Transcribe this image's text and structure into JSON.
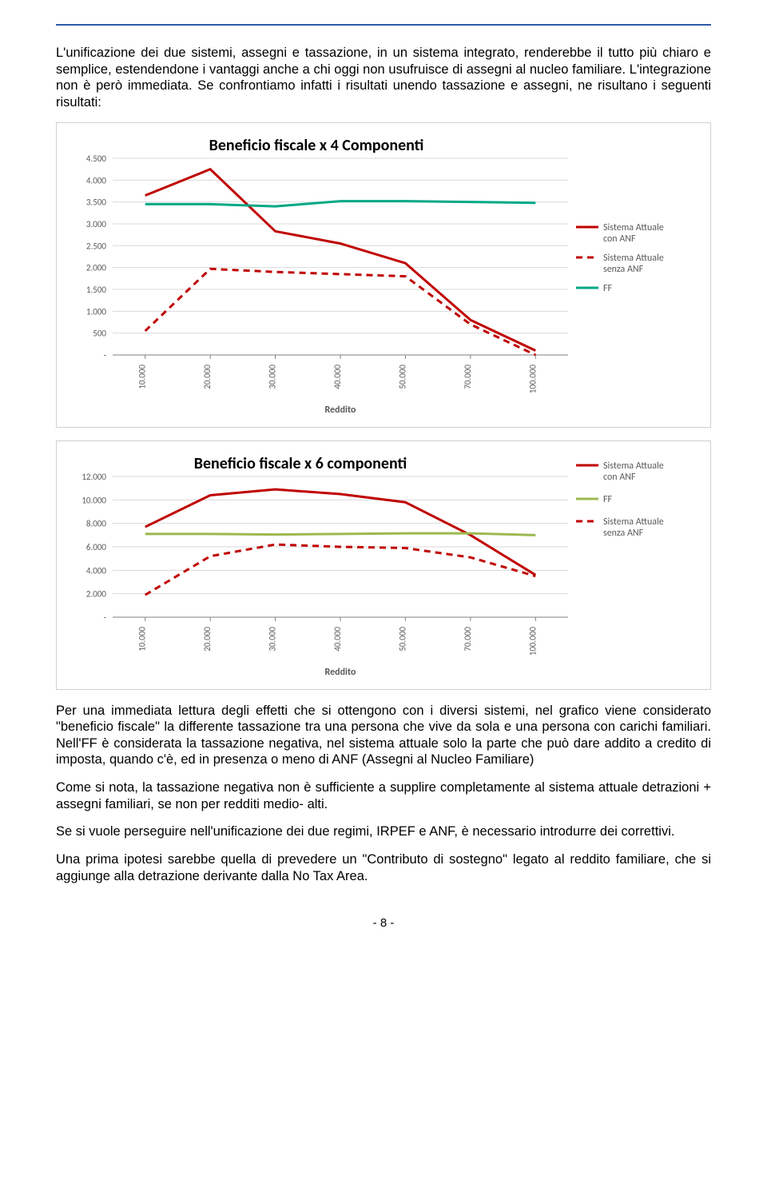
{
  "para1": "L'unificazione dei due sistemi, assegni e tassazione, in un sistema integrato, renderebbe il tutto più chiaro e semplice, estendendone i vantaggi anche a chi oggi non usufruisce di assegni al nucleo familiare. L'integrazione non è però immediata. Se confrontiamo infatti i risultati unendo tassazione e assegni, ne risultano i seguenti risultati:",
  "para2": "Per una immediata lettura degli effetti che si ottengono con i diversi sistemi, nel grafico viene considerato \"beneficio fiscale\" la differente tassazione tra una persona che vive da sola e una persona con carichi familiari. Nell'FF è considerata la tassazione negativa, nel sistema attuale solo la parte che può dare addito a credito di imposta, quando c'è, ed in presenza o meno di ANF (Assegni al Nucleo Familiare)",
  "para3": "Come si nota, la tassazione negativa non è sufficiente a supplire completamente al sistema attuale detrazioni + assegni familiari, se non per redditi medio- alti.",
  "para4": "Se si vuole perseguire nell'unificazione dei due regimi, IRPEF e ANF, è necessario introdurre dei correttivi.",
  "para5": "Una prima ipotesi sarebbe quella di prevedere un \"Contributo di sostegno\" legato al reddito familiare, che si aggiunge alla detrazione derivante dalla No Tax Area.",
  "page_number": "- 8 -",
  "chart1": {
    "type": "line",
    "title": "Beneficio fiscale x 4 Componenti",
    "title_fontsize": 20,
    "title_weight": "bold",
    "background": "#ffffff",
    "grid_color": "#d9d9d9",
    "axis_color": "#808080",
    "tick_color": "#808080",
    "tick_fontsize": 11,
    "x_label": "Reddito",
    "x_label_fontsize": 12,
    "x_categories": [
      "10.000",
      "20.000",
      "30.000",
      "40.000",
      "50.000",
      "70.000",
      "100.000"
    ],
    "y_ticks": [
      "-",
      "500",
      "1.000",
      "1.500",
      "2.000",
      "2.500",
      "3.000",
      "3.500",
      "4.000",
      "4.500"
    ],
    "y_min": 0,
    "y_max": 4500,
    "y_step": 500,
    "series": [
      {
        "name": "Sistema Attuale con ANF",
        "color": "#c00000",
        "dash": "none",
        "width": 3,
        "values": [
          3650,
          4250,
          2830,
          2550,
          2100,
          800,
          100
        ]
      },
      {
        "name": "Sistema Attuale senza ANF",
        "color": "#c00000",
        "dash": "8,6",
        "width": 3,
        "values": [
          550,
          1970,
          1900,
          1850,
          1800,
          700,
          0
        ]
      },
      {
        "name": "FF",
        "color": "#00a884",
        "dash": "none",
        "width": 3,
        "values": [
          3450,
          3450,
          3400,
          3520,
          3520,
          3500,
          3480
        ]
      }
    ],
    "legend": [
      {
        "label": "Sistema Attuale con ANF",
        "color": "#c00000",
        "dash": "none"
      },
      {
        "label": "Sistema Attuale senza ANF",
        "color": "#c00000",
        "dash": "8,6"
      },
      {
        "label": "FF",
        "color": "#00a884",
        "dash": "none"
      }
    ]
  },
  "chart2": {
    "type": "line",
    "title": "Beneficio fiscale  x 6 componenti",
    "title_fontsize": 20,
    "title_weight": "bold",
    "background": "#ffffff",
    "grid_color": "#d9d9d9",
    "axis_color": "#808080",
    "tick_color": "#808080",
    "tick_fontsize": 11,
    "x_label": "Reddito",
    "x_label_fontsize": 12,
    "x_categories": [
      "10.000",
      "20.000",
      "30.000",
      "40.000",
      "50.000",
      "70.000",
      "100.000"
    ],
    "y_ticks": [
      "-",
      "2.000",
      "4.000",
      "6.000",
      "8.000",
      "10.000",
      "12.000"
    ],
    "y_min": 0,
    "y_max": 12000,
    "y_step": 2000,
    "series": [
      {
        "name": "Sistema Attuale con ANF",
        "color": "#c00000",
        "dash": "none",
        "width": 3,
        "values": [
          7700,
          10400,
          10900,
          10500,
          9800,
          7000,
          3600
        ]
      },
      {
        "name": "FF",
        "color": "#9cb94e",
        "dash": "none",
        "width": 3,
        "values": [
          7100,
          7100,
          7050,
          7100,
          7150,
          7150,
          7000
        ]
      },
      {
        "name": "Sistema Attuale senza ANF",
        "color": "#c00000",
        "dash": "8,6",
        "width": 3,
        "values": [
          1900,
          5200,
          6200,
          6000,
          5900,
          5100,
          3500
        ]
      }
    ],
    "legend": [
      {
        "label": "Sistema Attuale con ANF",
        "color": "#c00000",
        "dash": "none"
      },
      {
        "label": "FF",
        "color": "#9cb94e",
        "dash": "none"
      },
      {
        "label": "Sistema Attuale senza ANF",
        "color": "#c00000",
        "dash": "8,6"
      }
    ]
  }
}
